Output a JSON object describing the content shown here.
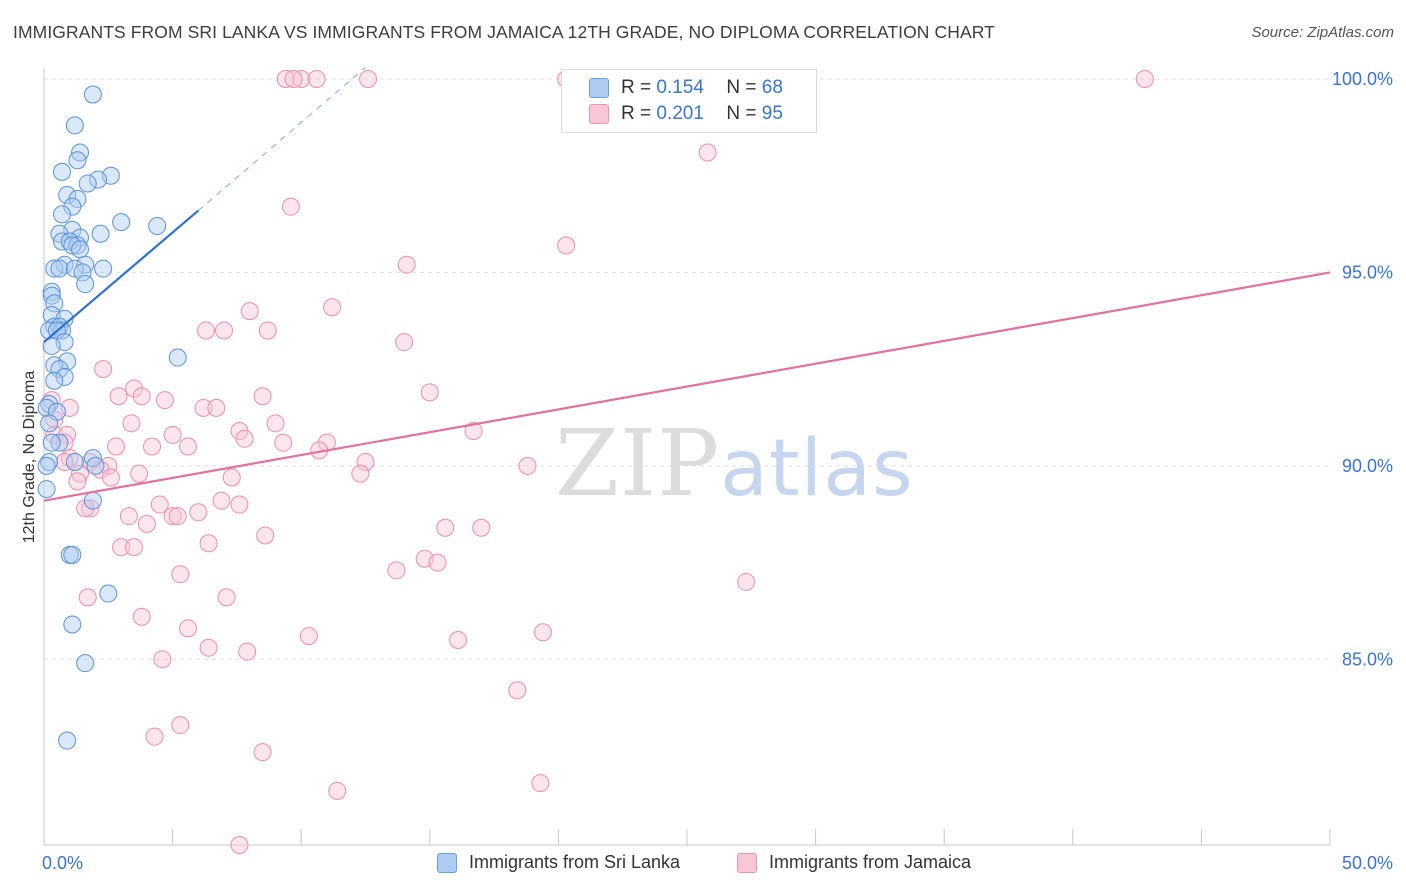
{
  "title": "IMMIGRANTS FROM SRI LANKA VS IMMIGRANTS FROM JAMAICA 12TH GRADE, NO DIPLOMA CORRELATION CHART",
  "source": "Source: ZipAtlas.com",
  "watermark": {
    "zip": "ZIP",
    "atlas": "atlas"
  },
  "legend": {
    "r_label": "R =",
    "n_label": "N =",
    "series1": {
      "r": "0.154",
      "n": "68"
    },
    "series2": {
      "r": "0.201",
      "n": "95"
    }
  },
  "colors": {
    "blue_fill": "#aecbf2",
    "blue_stroke": "#5b93dc",
    "blue_line": "#2f6fd0",
    "pink_fill": "#f8c6d6",
    "pink_stroke": "#ec8fad",
    "pink_line": "#e5709b",
    "tick_text": "#3a73d1",
    "grid": "#dddddd"
  },
  "chart_data": {
    "type": "scatter",
    "title": "IMMIGRANTS FROM SRI LANKA VS IMMIGRANTS FROM JAMAICA 12TH GRADE, NO DIPLOMA CORRELATION CHART",
    "xlabel": "",
    "ylabel": "12th Grade, No Diploma",
    "xlim": [
      0,
      50
    ],
    "ylim": [
      80,
      100.5
    ],
    "x_tick_labels": [
      "0.0%",
      "50.0%"
    ],
    "y_ticks": [
      85,
      90,
      95,
      100
    ],
    "y_tick_labels": [
      "85.0%",
      "90.0%",
      "95.0%",
      "100.0%"
    ],
    "series": [
      {
        "name": "Immigrants from Sri Lanka",
        "color": "blue",
        "trend": {
          "x": [
            0.0,
            6.0
          ],
          "y": [
            93.2,
            96.6
          ],
          "dashed_to": [
            12.5,
            100.3
          ]
        },
        "points": [
          [
            1.9,
            99.6
          ],
          [
            1.2,
            98.8
          ],
          [
            1.4,
            98.1
          ],
          [
            1.3,
            97.9
          ],
          [
            0.7,
            97.6
          ],
          [
            2.6,
            97.5
          ],
          [
            2.1,
            97.4
          ],
          [
            1.7,
            97.3
          ],
          [
            0.9,
            97.0
          ],
          [
            1.3,
            96.9
          ],
          [
            1.1,
            96.7
          ],
          [
            0.7,
            96.5
          ],
          [
            3.0,
            96.3
          ],
          [
            4.4,
            96.2
          ],
          [
            1.1,
            96.1
          ],
          [
            2.2,
            96.0
          ],
          [
            0.6,
            96.0
          ],
          [
            1.4,
            95.9
          ],
          [
            0.7,
            95.8
          ],
          [
            1.0,
            95.8
          ],
          [
            1.3,
            95.7
          ],
          [
            1.1,
            95.7
          ],
          [
            1.4,
            95.6
          ],
          [
            0.8,
            95.2
          ],
          [
            1.6,
            95.2
          ],
          [
            0.4,
            95.1
          ],
          [
            0.6,
            95.1
          ],
          [
            1.2,
            95.1
          ],
          [
            2.3,
            95.1
          ],
          [
            1.5,
            95.0
          ],
          [
            1.6,
            94.7
          ],
          [
            0.3,
            94.5
          ],
          [
            0.3,
            94.4
          ],
          [
            0.4,
            94.2
          ],
          [
            0.3,
            93.9
          ],
          [
            0.8,
            93.8
          ],
          [
            0.4,
            93.6
          ],
          [
            0.6,
            93.6
          ],
          [
            0.2,
            93.5
          ],
          [
            0.7,
            93.5
          ],
          [
            0.5,
            93.5
          ],
          [
            0.8,
            93.2
          ],
          [
            0.3,
            93.1
          ],
          [
            5.2,
            92.8
          ],
          [
            0.9,
            92.7
          ],
          [
            0.4,
            92.6
          ],
          [
            0.6,
            92.5
          ],
          [
            0.8,
            92.3
          ],
          [
            0.4,
            92.2
          ],
          [
            0.2,
            91.6
          ],
          [
            0.1,
            91.5
          ],
          [
            0.5,
            91.4
          ],
          [
            0.2,
            91.1
          ],
          [
            0.6,
            90.6
          ],
          [
            0.3,
            90.6
          ],
          [
            1.9,
            90.2
          ],
          [
            0.2,
            90.1
          ],
          [
            1.2,
            90.1
          ],
          [
            0.1,
            90.0
          ],
          [
            2.0,
            90.0
          ],
          [
            0.1,
            89.4
          ],
          [
            1.9,
            89.1
          ],
          [
            1.0,
            87.7
          ],
          [
            1.1,
            87.7
          ],
          [
            2.5,
            86.7
          ],
          [
            1.1,
            85.9
          ],
          [
            1.6,
            84.9
          ],
          [
            0.9,
            82.9
          ]
        ]
      },
      {
        "name": "Immigrants from Jamaica",
        "color": "pink",
        "trend": {
          "x": [
            0.0,
            50.0
          ],
          "y": [
            89.1,
            95.0
          ]
        },
        "points": [
          [
            9.4,
            100.0
          ],
          [
            10.0,
            100.0
          ],
          [
            9.7,
            100.0
          ],
          [
            10.6,
            100.0
          ],
          [
            12.6,
            100.0
          ],
          [
            20.3,
            100.0
          ],
          [
            42.8,
            100.0
          ],
          [
            25.8,
            98.1
          ],
          [
            9.6,
            96.7
          ],
          [
            20.3,
            95.7
          ],
          [
            14.1,
            95.2
          ],
          [
            11.2,
            94.1
          ],
          [
            8.0,
            94.0
          ],
          [
            6.3,
            93.5
          ],
          [
            7.0,
            93.5
          ],
          [
            8.7,
            93.5
          ],
          [
            14.0,
            93.2
          ],
          [
            2.3,
            92.5
          ],
          [
            15.0,
            91.9
          ],
          [
            3.5,
            92.0
          ],
          [
            3.8,
            91.8
          ],
          [
            8.5,
            91.8
          ],
          [
            4.7,
            91.7
          ],
          [
            2.9,
            91.8
          ],
          [
            6.2,
            91.5
          ],
          [
            6.7,
            91.5
          ],
          [
            0.3,
            91.7
          ],
          [
            0.4,
            91.2
          ],
          [
            1.0,
            91.5
          ],
          [
            9.0,
            91.1
          ],
          [
            16.7,
            90.9
          ],
          [
            3.4,
            91.1
          ],
          [
            7.6,
            90.9
          ],
          [
            7.8,
            90.7
          ],
          [
            5.0,
            90.8
          ],
          [
            0.4,
            90.8
          ],
          [
            0.9,
            90.8
          ],
          [
            0.8,
            90.6
          ],
          [
            9.3,
            90.6
          ],
          [
            11.0,
            90.6
          ],
          [
            2.8,
            90.5
          ],
          [
            4.2,
            90.5
          ],
          [
            5.6,
            90.5
          ],
          [
            10.7,
            90.4
          ],
          [
            1.0,
            90.2
          ],
          [
            0.8,
            90.1
          ],
          [
            1.8,
            90.1
          ],
          [
            2.5,
            90.0
          ],
          [
            12.5,
            90.1
          ],
          [
            18.8,
            90.0
          ],
          [
            2.2,
            89.9
          ],
          [
            12.3,
            89.8
          ],
          [
            1.4,
            89.8
          ],
          [
            2.6,
            89.7
          ],
          [
            3.7,
            89.8
          ],
          [
            7.3,
            89.7
          ],
          [
            1.3,
            89.6
          ],
          [
            4.5,
            89.0
          ],
          [
            6.9,
            89.1
          ],
          [
            7.6,
            89.0
          ],
          [
            1.8,
            88.9
          ],
          [
            1.6,
            88.9
          ],
          [
            6.0,
            88.8
          ],
          [
            5.0,
            88.7
          ],
          [
            5.2,
            88.7
          ],
          [
            3.3,
            88.7
          ],
          [
            4.0,
            88.5
          ],
          [
            15.6,
            88.4
          ],
          [
            17.0,
            88.4
          ],
          [
            8.6,
            88.2
          ],
          [
            6.4,
            88.0
          ],
          [
            3.0,
            87.9
          ],
          [
            3.5,
            87.9
          ],
          [
            14.8,
            87.6
          ],
          [
            15.3,
            87.5
          ],
          [
            13.7,
            87.3
          ],
          [
            5.3,
            87.2
          ],
          [
            27.3,
            87.0
          ],
          [
            1.7,
            86.6
          ],
          [
            7.1,
            86.6
          ],
          [
            3.8,
            86.1
          ],
          [
            5.6,
            85.8
          ],
          [
            10.3,
            85.6
          ],
          [
            16.1,
            85.5
          ],
          [
            19.4,
            85.7
          ],
          [
            6.4,
            85.3
          ],
          [
            7.9,
            85.2
          ],
          [
            4.6,
            85.0
          ],
          [
            18.4,
            84.2
          ],
          [
            5.3,
            83.3
          ],
          [
            4.3,
            83.0
          ],
          [
            8.5,
            82.6
          ],
          [
            19.3,
            81.8
          ],
          [
            11.4,
            81.6
          ],
          [
            7.6,
            80.2
          ]
        ]
      }
    ]
  }
}
